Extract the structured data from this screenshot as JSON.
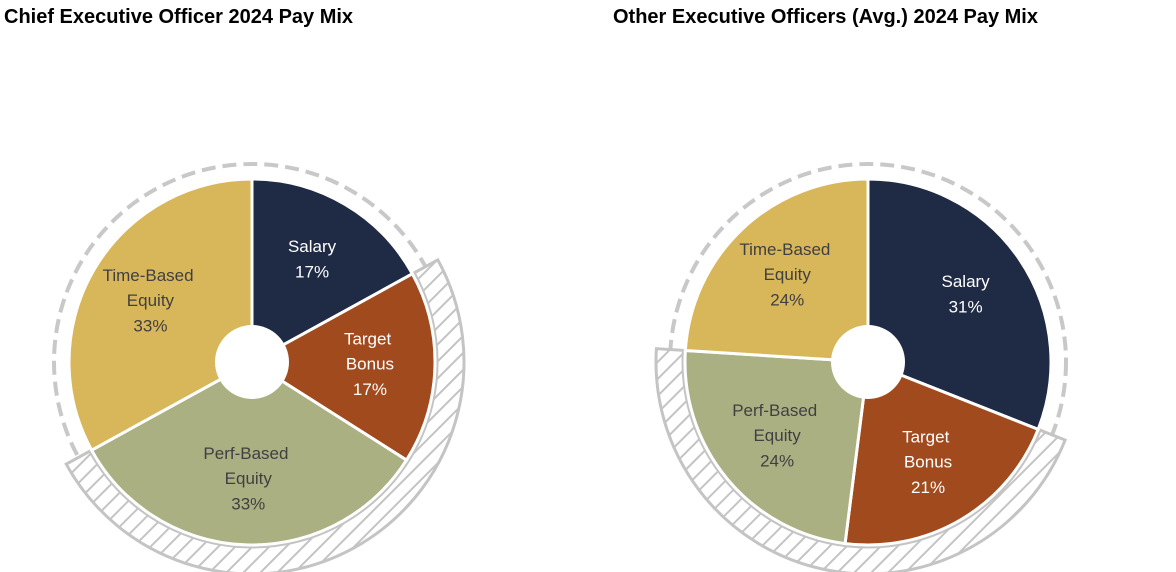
{
  "chart_data": [
    {
      "type": "pie",
      "title": "Chief Executive Officer 2024 Pay Mix",
      "categories": [
        "Salary",
        "Target Bonus",
        "Perf-Based Equity",
        "Time-Based Equity"
      ],
      "values": [
        17,
        17,
        33,
        33
      ],
      "value_labels": [
        "17%",
        "17%",
        "33%",
        "33%"
      ],
      "colors": [
        "#1f2a44",
        "#a04a1e",
        "#abb083",
        "#d8b65a"
      ]
    },
    {
      "type": "pie",
      "title": "Other Executive Officers (Avg.) 2024 Pay Mix",
      "categories": [
        "Salary",
        "Target Bonus",
        "Perf-Based Equity",
        "Time-Based Equity"
      ],
      "values": [
        31,
        21,
        24,
        24
      ],
      "value_labels": [
        "31%",
        "21%",
        "24%",
        "24%"
      ],
      "colors": [
        "#1f2a44",
        "#a04a1e",
        "#abb083",
        "#d8b65a"
      ]
    }
  ]
}
